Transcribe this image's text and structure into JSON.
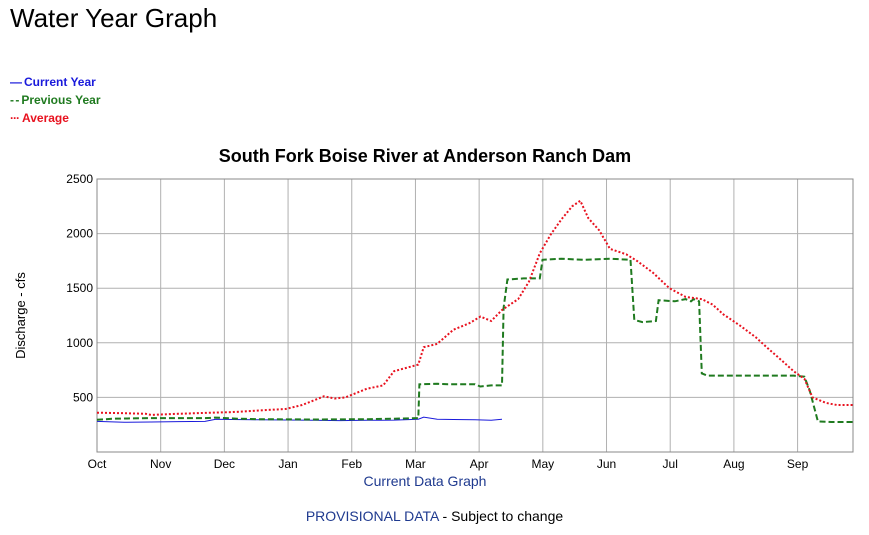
{
  "page": {
    "title": "Water Year Graph",
    "footer_provisional": "PROVISIONAL DATA",
    "footer_rest": " - Subject to change"
  },
  "legend": [
    {
      "label": "Current Year",
      "color": "#1a1adb",
      "swatch": "—"
    },
    {
      "label": "Previous Year",
      "color": "#1f7a1f",
      "swatch": "- -"
    },
    {
      "label": "Average",
      "color": "#e8121f",
      "swatch": "···"
    }
  ],
  "chart_data": {
    "type": "line",
    "title": "South Fork Boise River at Anderson Ranch Dam",
    "xlabel": "Current Data Graph",
    "ylabel": "Discharge - cfs",
    "ylim": [
      0,
      2500
    ],
    "y_ticks": [
      500,
      1000,
      1500,
      2000,
      2500
    ],
    "x_ticks": [
      "Oct",
      "Nov",
      "Dec",
      "Jan",
      "Feb",
      "Mar",
      "Apr",
      "May",
      "Jun",
      "Jul",
      "Aug",
      "Sep"
    ],
    "grid": true,
    "legend_position": "top-left",
    "series": [
      {
        "name": "Current Year",
        "color": "#1a1adb",
        "style": "solid",
        "points": [
          [
            0,
            280
          ],
          [
            0.5,
            272
          ],
          [
            1,
            275
          ],
          [
            1.5,
            278
          ],
          [
            2,
            280
          ],
          [
            2.2,
            300
          ],
          [
            2.5,
            298
          ],
          [
            3,
            295
          ],
          [
            3.5,
            293
          ],
          [
            4,
            290
          ],
          [
            4.5,
            288
          ],
          [
            5,
            290
          ],
          [
            5.5,
            292
          ],
          [
            5.95,
            300
          ],
          [
            6.05,
            320
          ],
          [
            6.3,
            300
          ],
          [
            6.6,
            298
          ],
          [
            7,
            295
          ],
          [
            7.3,
            290
          ],
          [
            7.5,
            300
          ]
        ]
      },
      {
        "name": "Previous Year",
        "color": "#1f7a1f",
        "style": "dashed",
        "points": [
          [
            0,
            295
          ],
          [
            0.3,
            305
          ],
          [
            1,
            310
          ],
          [
            1.5,
            310
          ],
          [
            2,
            310
          ],
          [
            2.2,
            315
          ],
          [
            2.6,
            305
          ],
          [
            3,
            300
          ],
          [
            4,
            298
          ],
          [
            5,
            300
          ],
          [
            5.5,
            305
          ],
          [
            5.95,
            310
          ],
          [
            5.97,
            620
          ],
          [
            6.3,
            625
          ],
          [
            6.5,
            620
          ],
          [
            7,
            620
          ],
          [
            7.1,
            600
          ],
          [
            7.3,
            610
          ],
          [
            7.5,
            610
          ],
          [
            7.53,
            1320
          ],
          [
            7.6,
            1580
          ],
          [
            7.9,
            1590
          ],
          [
            8.2,
            1590
          ],
          [
            8.25,
            1760
          ],
          [
            8.6,
            1770
          ],
          [
            9,
            1760
          ],
          [
            9.5,
            1770
          ],
          [
            9.88,
            1760
          ],
          [
            9.95,
            1210
          ],
          [
            10.1,
            1190
          ],
          [
            10.35,
            1200
          ],
          [
            10.4,
            1390
          ],
          [
            10.7,
            1380
          ],
          [
            10.9,
            1400
          ],
          [
            11.0,
            1380
          ],
          [
            11.05,
            1400
          ],
          [
            11.15,
            1380
          ],
          [
            11.2,
            720
          ],
          [
            11.3,
            700
          ],
          [
            11.6,
            700
          ],
          [
            12,
            700
          ],
          [
            12.4,
            700
          ],
          [
            12.9,
            700
          ],
          [
            13.1,
            690
          ],
          [
            13.2,
            560
          ],
          [
            13.35,
            280
          ],
          [
            13.6,
            275
          ],
          [
            14,
            275
          ]
        ]
      },
      {
        "name": "Average",
        "color": "#e8121f",
        "style": "dotted",
        "points": [
          [
            0,
            360
          ],
          [
            0.5,
            355
          ],
          [
            0.9,
            350
          ],
          [
            1,
            340
          ],
          [
            1.5,
            350
          ],
          [
            2,
            358
          ],
          [
            2.5,
            365
          ],
          [
            3,
            380
          ],
          [
            3.5,
            395
          ],
          [
            3.8,
            430
          ],
          [
            4,
            470
          ],
          [
            4.2,
            510
          ],
          [
            4.4,
            490
          ],
          [
            4.6,
            500
          ],
          [
            5,
            580
          ],
          [
            5.3,
            610
          ],
          [
            5.5,
            740
          ],
          [
            5.8,
            780
          ],
          [
            5.95,
            800
          ],
          [
            6.05,
            960
          ],
          [
            6.3,
            990
          ],
          [
            6.6,
            1120
          ],
          [
            6.9,
            1180
          ],
          [
            7.1,
            1240
          ],
          [
            7.3,
            1200
          ],
          [
            7.5,
            1300
          ],
          [
            7.8,
            1400
          ],
          [
            8,
            1560
          ],
          [
            8.2,
            1820
          ],
          [
            8.4,
            1990
          ],
          [
            8.6,
            2130
          ],
          [
            8.8,
            2250
          ],
          [
            8.95,
            2300
          ],
          [
            9.1,
            2140
          ],
          [
            9.3,
            2030
          ],
          [
            9.5,
            1860
          ],
          [
            9.8,
            1810
          ],
          [
            10,
            1750
          ],
          [
            10.3,
            1640
          ],
          [
            10.6,
            1500
          ],
          [
            10.9,
            1420
          ],
          [
            11.2,
            1400
          ],
          [
            11.4,
            1350
          ],
          [
            11.6,
            1260
          ],
          [
            11.9,
            1160
          ],
          [
            12.2,
            1050
          ],
          [
            12.4,
            960
          ],
          [
            12.7,
            830
          ],
          [
            12.9,
            740
          ],
          [
            13.1,
            670
          ],
          [
            13.25,
            500
          ],
          [
            13.5,
            450
          ],
          [
            13.7,
            430
          ],
          [
            14,
            430
          ]
        ]
      }
    ]
  }
}
